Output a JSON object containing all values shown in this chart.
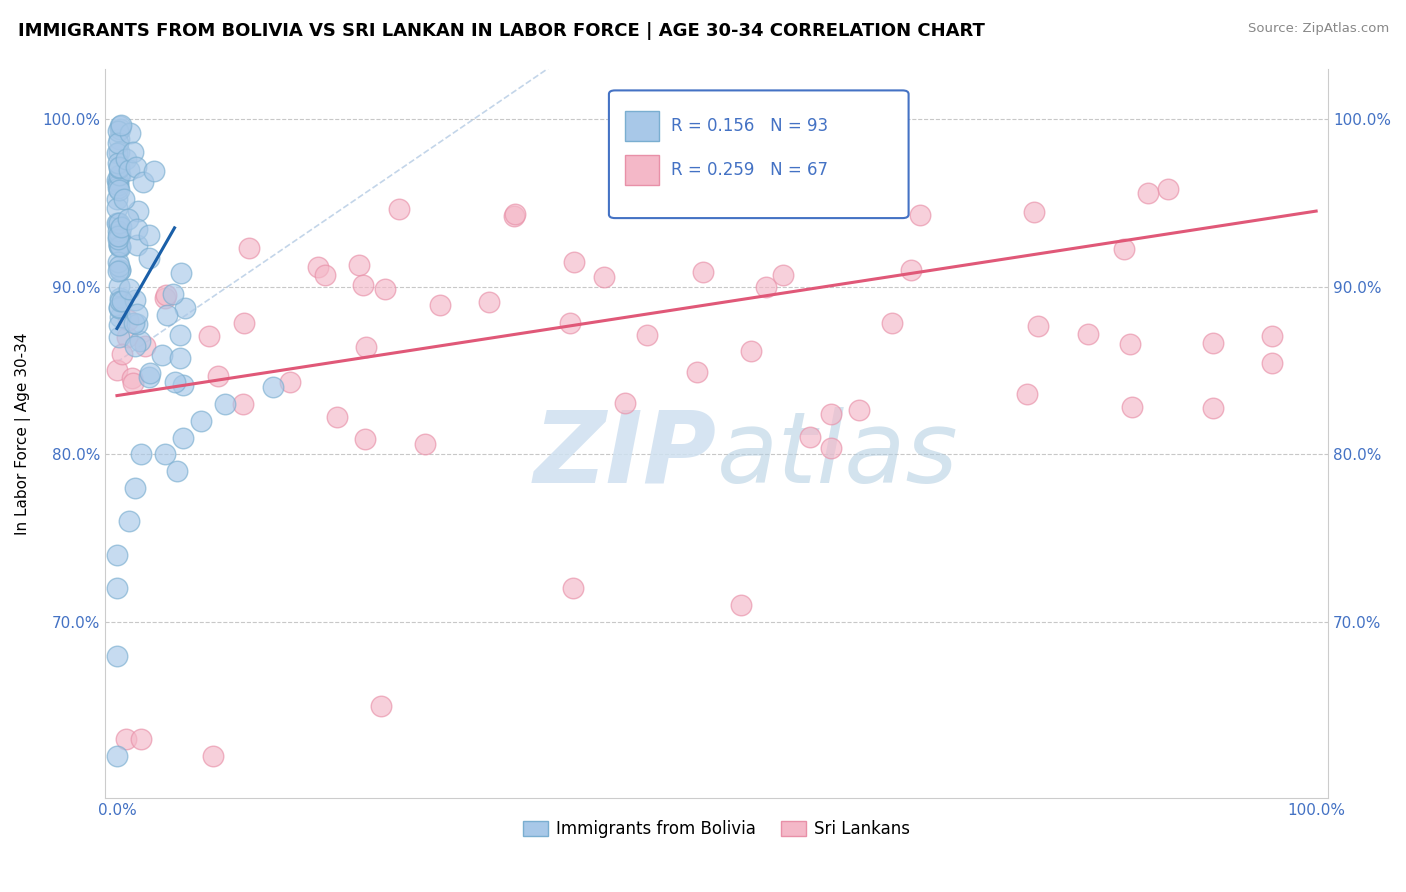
{
  "title": "IMMIGRANTS FROM BOLIVIA VS SRI LANKAN IN LABOR FORCE | AGE 30-34 CORRELATION CHART",
  "source": "Source: ZipAtlas.com",
  "ylabel": "In Labor Force | Age 30-34",
  "xlim": [
    -0.01,
    1.01
  ],
  "ylim": [
    0.595,
    1.03
  ],
  "yticks": [
    0.7,
    0.8,
    0.9,
    1.0
  ],
  "ytick_labels": [
    "70.0%",
    "80.0%",
    "90.0%",
    "100.0%"
  ],
  "xticks": [
    0.0,
    1.0
  ],
  "xtick_labels": [
    "0.0%",
    "100.0%"
  ],
  "scatter_color_bolivia": "#a8c8e8",
  "scatter_edge_bolivia": "#7aaed0",
  "scatter_color_srilanka": "#f4b8c8",
  "scatter_edge_srilanka": "#e890a8",
  "trend_color_bolivia": "#1a5fa8",
  "trend_color_srilanka": "#e05878",
  "background_color": "#ffffff",
  "tick_color": "#4472c4",
  "grid_color": "#c8c8c8",
  "title_fontsize": 13,
  "axis_label_fontsize": 11,
  "tick_fontsize": 11,
  "watermark_color": "#cfe0f0",
  "bolivia_trend_x0": 0.0,
  "bolivia_trend_y0": 0.875,
  "bolivia_trend_x1": 0.048,
  "bolivia_trend_y1": 0.935,
  "srilanka_trend_x0": 0.0,
  "srilanka_trend_y0": 0.835,
  "srilanka_trend_x1": 1.0,
  "srilanka_trend_y1": 0.945
}
